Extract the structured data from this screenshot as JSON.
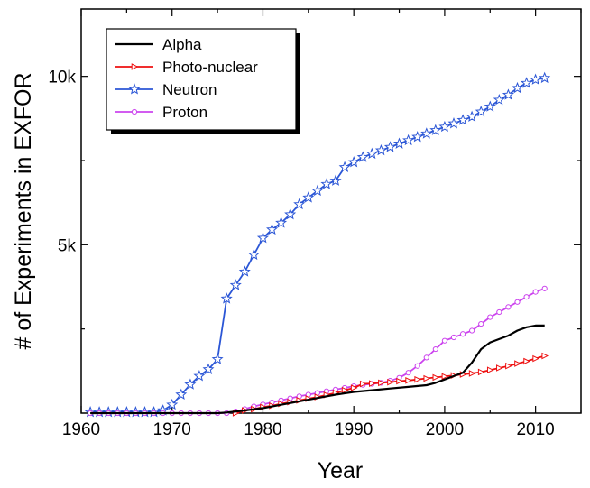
{
  "chart_data": {
    "type": "line",
    "title": "",
    "xlabel": "Year",
    "ylabel": "# of Experiments in EXFOR",
    "xlim": [
      1960,
      2015
    ],
    "ylim": [
      0,
      12000
    ],
    "xticks": [
      1960,
      1970,
      1980,
      1990,
      2000,
      2010
    ],
    "xtick_labels": [
      "1960",
      "1970",
      "1980",
      "1990",
      "2000",
      "2010"
    ],
    "yticks": [
      5000,
      10000
    ],
    "ytick_labels": [
      "5k",
      "10k"
    ],
    "legend_position": "top-left",
    "series": [
      {
        "name": "Alpha",
        "color": "#000000",
        "marker": "none",
        "points": [
          [
            1961,
            0
          ],
          [
            1975,
            0
          ],
          [
            1976,
            20
          ],
          [
            1978,
            80
          ],
          [
            1980,
            150
          ],
          [
            1982,
            250
          ],
          [
            1984,
            350
          ],
          [
            1986,
            450
          ],
          [
            1988,
            550
          ],
          [
            1990,
            630
          ],
          [
            1992,
            680
          ],
          [
            1994,
            730
          ],
          [
            1996,
            780
          ],
          [
            1998,
            830
          ],
          [
            1999,
            900
          ],
          [
            2000,
            1000
          ],
          [
            2001,
            1100
          ],
          [
            2002,
            1200
          ],
          [
            2003,
            1500
          ],
          [
            2004,
            1900
          ],
          [
            2005,
            2100
          ],
          [
            2006,
            2200
          ],
          [
            2007,
            2300
          ],
          [
            2008,
            2450
          ],
          [
            2009,
            2550
          ],
          [
            2010,
            2600
          ],
          [
            2011,
            2600
          ]
        ]
      },
      {
        "name": "Photo-nuclear",
        "color": "#ee1111",
        "marker": "triangle-right",
        "points": [
          [
            1977,
            0
          ],
          [
            1978,
            80
          ],
          [
            1979,
            120
          ],
          [
            1980,
            180
          ],
          [
            1981,
            220
          ],
          [
            1982,
            280
          ],
          [
            1983,
            330
          ],
          [
            1984,
            380
          ],
          [
            1985,
            430
          ],
          [
            1986,
            480
          ],
          [
            1987,
            540
          ],
          [
            1988,
            600
          ],
          [
            1989,
            680
          ],
          [
            1990,
            750
          ],
          [
            1991,
            870
          ],
          [
            1992,
            880
          ],
          [
            1993,
            900
          ],
          [
            1994,
            920
          ],
          [
            1995,
            950
          ],
          [
            1996,
            970
          ],
          [
            1997,
            1000
          ],
          [
            1998,
            1030
          ],
          [
            1999,
            1060
          ],
          [
            2000,
            1090
          ],
          [
            2001,
            1120
          ],
          [
            2002,
            1150
          ],
          [
            2003,
            1180
          ],
          [
            2004,
            1220
          ],
          [
            2005,
            1280
          ],
          [
            2006,
            1340
          ],
          [
            2007,
            1400
          ],
          [
            2008,
            1470
          ],
          [
            2009,
            1540
          ],
          [
            2010,
            1620
          ],
          [
            2011,
            1700
          ]
        ]
      },
      {
        "name": "Neutron",
        "color": "#2b56d6",
        "marker": "star",
        "points": [
          [
            1961,
            30
          ],
          [
            1962,
            30
          ],
          [
            1963,
            30
          ],
          [
            1964,
            30
          ],
          [
            1965,
            30
          ],
          [
            1966,
            30
          ],
          [
            1967,
            30
          ],
          [
            1968,
            30
          ],
          [
            1969,
            80
          ],
          [
            1970,
            250
          ],
          [
            1971,
            550
          ],
          [
            1972,
            850
          ],
          [
            1973,
            1100
          ],
          [
            1974,
            1300
          ],
          [
            1975,
            1600
          ],
          [
            1976,
            3400
          ],
          [
            1977,
            3800
          ],
          [
            1978,
            4200
          ],
          [
            1979,
            4700
          ],
          [
            1980,
            5200
          ],
          [
            1981,
            5450
          ],
          [
            1982,
            5650
          ],
          [
            1983,
            5900
          ],
          [
            1984,
            6200
          ],
          [
            1985,
            6400
          ],
          [
            1986,
            6600
          ],
          [
            1987,
            6800
          ],
          [
            1988,
            6900
          ],
          [
            1989,
            7300
          ],
          [
            1990,
            7450
          ],
          [
            1991,
            7600
          ],
          [
            1992,
            7700
          ],
          [
            1993,
            7800
          ],
          [
            1994,
            7900
          ],
          [
            1995,
            8000
          ],
          [
            1996,
            8100
          ],
          [
            1997,
            8200
          ],
          [
            1998,
            8300
          ],
          [
            1999,
            8400
          ],
          [
            2000,
            8500
          ],
          [
            2001,
            8600
          ],
          [
            2002,
            8700
          ],
          [
            2003,
            8800
          ],
          [
            2004,
            8950
          ],
          [
            2005,
            9100
          ],
          [
            2006,
            9300
          ],
          [
            2007,
            9450
          ],
          [
            2008,
            9650
          ],
          [
            2009,
            9800
          ],
          [
            2010,
            9900
          ],
          [
            2011,
            9950
          ]
        ]
      },
      {
        "name": "Proton",
        "color": "#cc44ee",
        "marker": "circle",
        "points": [
          [
            1961,
            0
          ],
          [
            1962,
            0
          ],
          [
            1963,
            0
          ],
          [
            1964,
            0
          ],
          [
            1965,
            0
          ],
          [
            1966,
            0
          ],
          [
            1967,
            0
          ],
          [
            1968,
            0
          ],
          [
            1969,
            0
          ],
          [
            1970,
            0
          ],
          [
            1971,
            0
          ],
          [
            1972,
            0
          ],
          [
            1973,
            0
          ],
          [
            1974,
            0
          ],
          [
            1975,
            0
          ],
          [
            1976,
            0
          ],
          [
            1977,
            50
          ],
          [
            1978,
            120
          ],
          [
            1979,
            200
          ],
          [
            1980,
            260
          ],
          [
            1981,
            320
          ],
          [
            1982,
            380
          ],
          [
            1983,
            440
          ],
          [
            1984,
            500
          ],
          [
            1985,
            550
          ],
          [
            1986,
            600
          ],
          [
            1987,
            650
          ],
          [
            1988,
            700
          ],
          [
            1989,
            750
          ],
          [
            1990,
            800
          ],
          [
            1991,
            840
          ],
          [
            1992,
            870
          ],
          [
            1993,
            900
          ],
          [
            1994,
            960
          ],
          [
            1995,
            1050
          ],
          [
            1996,
            1200
          ],
          [
            1997,
            1400
          ],
          [
            1998,
            1650
          ],
          [
            1999,
            1900
          ],
          [
            2000,
            2150
          ],
          [
            2001,
            2250
          ],
          [
            2002,
            2350
          ],
          [
            2003,
            2450
          ],
          [
            2004,
            2650
          ],
          [
            2005,
            2850
          ],
          [
            2006,
            3000
          ],
          [
            2007,
            3150
          ],
          [
            2008,
            3300
          ],
          [
            2009,
            3450
          ],
          [
            2010,
            3600
          ],
          [
            2011,
            3700
          ]
        ]
      }
    ]
  }
}
